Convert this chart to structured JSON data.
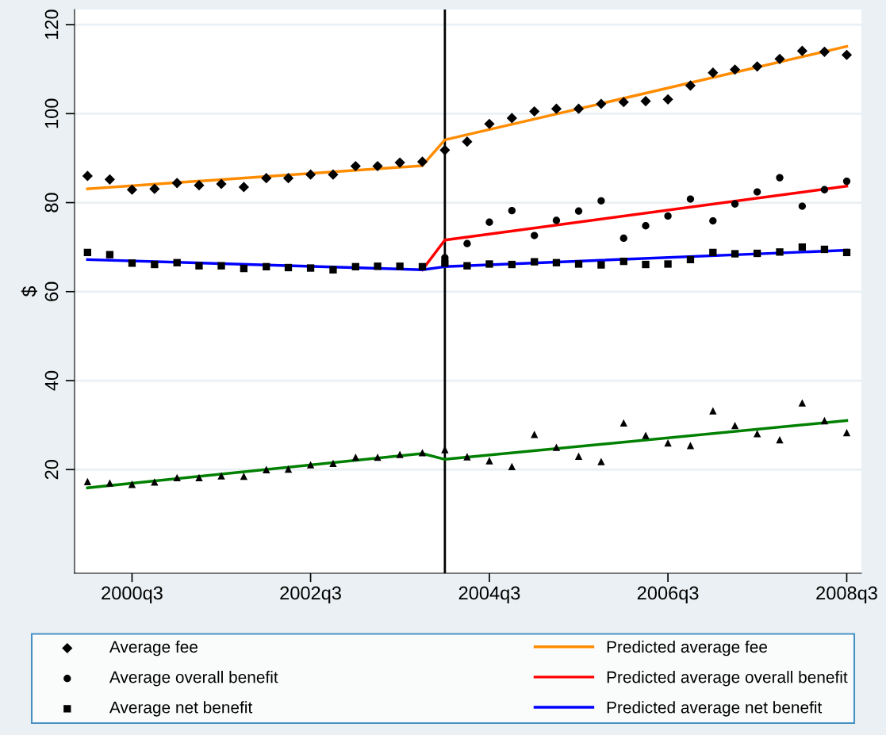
{
  "chart_data": {
    "type": "scatter",
    "ylabel": "$",
    "x": [
      "2000-01",
      "2000-04",
      "2000-07",
      "2000-10",
      "2001-01",
      "2001-04",
      "2001-07",
      "2001-10",
      "2002-01",
      "2002-04",
      "2002-07",
      "2002-10",
      "2003-01",
      "2003-04",
      "2003-07",
      "2003-10",
      "2004-01",
      "2004-04",
      "2004-07",
      "2004-10",
      "2005-01",
      "2005-04",
      "2005-07",
      "2005-10",
      "2006-01",
      "2006-04",
      "2006-07",
      "2006-10",
      "2007-01",
      "2007-04",
      "2007-07",
      "2007-10",
      "2008-01",
      "2008-04",
      "2008-07"
    ],
    "xlim": [
      "1999-11-09",
      "2008-08-30"
    ],
    "ylim": [
      -3.3,
      123.4
    ],
    "xticks": [
      {
        "value": "2000-07",
        "label": "2000q3"
      },
      {
        "value": "2002-07",
        "label": "2002q3"
      },
      {
        "value": "2004-07",
        "label": "2004q3"
      },
      {
        "value": "2006-07",
        "label": "2006q3"
      },
      {
        "value": "2008-07",
        "label": "2008q3"
      }
    ],
    "yticks": [
      20,
      40,
      60,
      80,
      100,
      120
    ],
    "grid": "y",
    "legend": "bottom",
    "ref_lines": [
      {
        "axis": "x",
        "value": "2004-01",
        "color": "#000000"
      }
    ],
    "series": [
      {
        "name": "Average fee",
        "marker": "diamond",
        "color": "#000000",
        "values": [
          86.0,
          85.2,
          82.9,
          83.1,
          84.4,
          83.9,
          84.2,
          83.5,
          85.5,
          85.5,
          86.3,
          86.3,
          88.2,
          88.2,
          89.0,
          89.2,
          91.8,
          93.7,
          97.7,
          99.0,
          100.5,
          101.1,
          101.1,
          102.2,
          102.6,
          102.8,
          103.2,
          106.3,
          109.2,
          109.9,
          110.6,
          112.3,
          114.1,
          113.9,
          113.2
        ]
      },
      {
        "name": "Average overall benefit",
        "marker": "circle",
        "color": "#000000",
        "values": [
          null,
          null,
          null,
          null,
          null,
          null,
          null,
          null,
          null,
          null,
          null,
          null,
          null,
          null,
          null,
          null,
          67.6,
          70.8,
          75.6,
          78.2,
          72.6,
          76.0,
          78.1,
          80.4,
          72.0,
          74.8,
          77.0,
          80.8,
          75.9,
          79.7,
          82.4,
          85.6,
          79.2,
          82.9,
          84.8
        ]
      },
      {
        "name": "Average net benefit",
        "marker": "square",
        "color": "#000000",
        "values": [
          68.8,
          68.3,
          66.4,
          66.1,
          66.5,
          65.8,
          65.8,
          65.2,
          65.6,
          65.4,
          65.3,
          64.9,
          65.6,
          65.7,
          65.7,
          65.6,
          66.4,
          65.8,
          66.2,
          66.1,
          66.7,
          66.5,
          66.2,
          66.0,
          66.8,
          66.1,
          66.2,
          67.2,
          68.8,
          68.5,
          68.6,
          68.9,
          70.0,
          69.5,
          68.8
        ]
      },
      {
        "marker": "triangle",
        "color": "#000000",
        "values": [
          17.3,
          17.0,
          16.7,
          17.2,
          18.2,
          18.2,
          18.6,
          18.5,
          20.0,
          20.1,
          21.1,
          21.4,
          22.8,
          22.8,
          23.4,
          23.8,
          24.5,
          22.9,
          22.0,
          20.7,
          27.9,
          25.0,
          23.0,
          21.8,
          30.5,
          27.7,
          26.0,
          25.4,
          33.2,
          29.9,
          28.1,
          26.7,
          35.0,
          31.0,
          28.3
        ]
      },
      {
        "name": "Predicted average fee",
        "type": "line",
        "color": "#ff8c00",
        "x": [
          "2000-01",
          "2003-10",
          "2004-01",
          "2008-07"
        ],
        "values": [
          83.1,
          88.3,
          94.1,
          115.1
        ]
      },
      {
        "name": "Predicted average overall benefit",
        "type": "line",
        "color": "#ff0000",
        "x": [
          "2003-10",
          "2004-01",
          "2008-07"
        ],
        "values": [
          64.9,
          71.6,
          83.7
        ]
      },
      {
        "name": "Predicted average net benefit",
        "type": "line",
        "color": "#0000ff",
        "x": [
          "2000-01",
          "2003-10",
          "2004-01",
          "2008-07"
        ],
        "values": [
          67.2,
          64.9,
          65.6,
          69.3
        ]
      },
      {
        "type": "line",
        "color": "#008000",
        "x": [
          "2000-01",
          "2003-10",
          "2004-01",
          "2008-07"
        ],
        "values": [
          15.9,
          23.6,
          22.3,
          31.0
        ]
      }
    ]
  }
}
